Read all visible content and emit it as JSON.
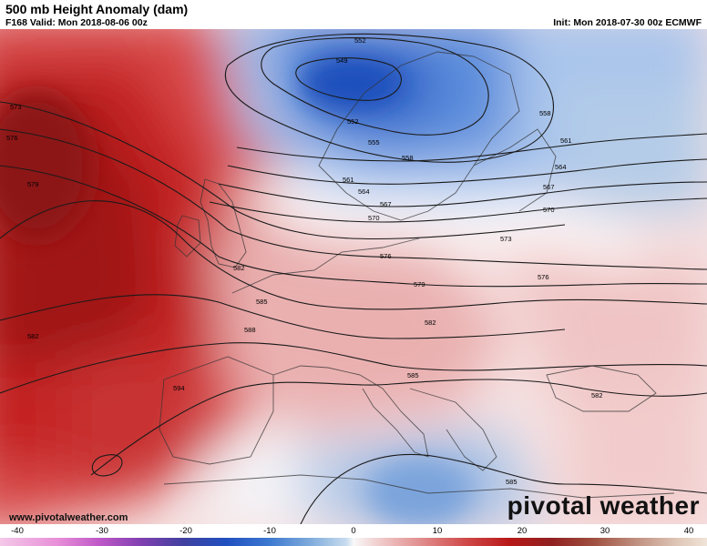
{
  "header": {
    "title": "500 mb Height Anomaly (dam)",
    "valid": "F168 Valid: Mon 2018-08-06 00z",
    "init": "Init: Mon 2018-07-30 00z ECMWF"
  },
  "contour_labels": [
    "552",
    "549",
    "552",
    "555",
    "558",
    "558",
    "561",
    "561",
    "564",
    "564",
    "567",
    "567",
    "570",
    "570",
    "573",
    "573",
    "576",
    "576",
    "576",
    "579",
    "579",
    "582",
    "582",
    "582",
    "582",
    "585",
    "585",
    "585",
    "588",
    "594"
  ],
  "colorbar": {
    "ticks": [
      "-40",
      "-30",
      "-20",
      "-10",
      "0",
      "10",
      "20",
      "30",
      "40"
    ],
    "values": [
      -40,
      -30,
      -20,
      -10,
      0,
      10,
      20,
      30,
      40
    ]
  },
  "footer": {
    "url": "www.pivotalweather.com",
    "logo": "pivotal weather"
  },
  "colors": {
    "positive_anomaly": "#c41c1c",
    "negative_anomaly": "#2e68c8",
    "neutral": "#f8f8f8"
  }
}
